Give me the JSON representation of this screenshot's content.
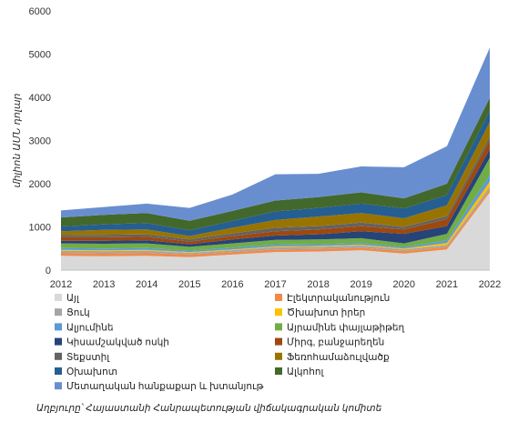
{
  "chart_data": {
    "type": "area",
    "stacked": true,
    "x": [
      "2012",
      "2013",
      "2014",
      "2015",
      "2016",
      "2017",
      "2018",
      "2019",
      "2020",
      "2021",
      "2022"
    ],
    "ylabel": "միլիոն ԱՄՆ դոլար",
    "ylim": [
      0,
      6000
    ],
    "yticks": [
      0,
      1000,
      2000,
      3000,
      4000,
      5000,
      6000
    ],
    "grid": false,
    "legend_position": "bottom",
    "source": "Աղբյուրը՝ Հայաստանի Հանրապետության վիճակագրական կոմիտե",
    "series": [
      {
        "name": "Այլ",
        "color": "#d9d9d9",
        "values": [
          330,
          320,
          330,
          300,
          360,
          420,
          430,
          460,
          380,
          480,
          1800
        ]
      },
      {
        "name": "Էլեկտրականություն",
        "color": "#f08a4b",
        "values": [
          70,
          70,
          70,
          60,
          60,
          60,
          60,
          60,
          60,
          60,
          70
        ]
      },
      {
        "name": "Ցուկ",
        "color": "#a5a5a5",
        "values": [
          50,
          50,
          50,
          40,
          40,
          50,
          50,
          50,
          40,
          40,
          60
        ]
      },
      {
        "name": "Ծխախոտ իրեր",
        "color": "#ffc000",
        "values": [
          20,
          20,
          20,
          20,
          20,
          20,
          20,
          20,
          20,
          50,
          120
        ]
      },
      {
        "name": "Ալյումինե",
        "color": "#5b9bd5",
        "values": [
          40,
          40,
          40,
          30,
          40,
          40,
          40,
          40,
          30,
          60,
          150
        ]
      },
      {
        "name": "Այրամինե փայլաթիթեղ",
        "color": "#70ad47",
        "values": [
          110,
          110,
          110,
          90,
          100,
          110,
          110,
          110,
          90,
          150,
          400
        ]
      },
      {
        "name": "Կիսամշակված ոսկի",
        "color": "#264478",
        "values": [
          60,
          70,
          70,
          60,
          90,
          100,
          120,
          160,
          220,
          180,
          200
        ]
      },
      {
        "name": "Միրգ, բանջարեղեն",
        "color": "#9e480e",
        "values": [
          80,
          80,
          80,
          60,
          80,
          100,
          110,
          120,
          100,
          160,
          210
        ]
      },
      {
        "name": "Տեքստիլ",
        "color": "#636363",
        "values": [
          50,
          60,
          60,
          50,
          60,
          80,
          80,
          80,
          60,
          70,
          90
        ]
      },
      {
        "name": "Ֆեռոհամաձուլվածք",
        "color": "#997300",
        "values": [
          90,
          110,
          110,
          80,
          130,
          180,
          220,
          220,
          200,
          250,
          330
        ]
      },
      {
        "name": "Օխախոտ",
        "color": "#255e91",
        "values": [
          110,
          130,
          150,
          130,
          160,
          200,
          200,
          220,
          230,
          240,
          260
        ]
      },
      {
        "name": "Ալկոհոլ",
        "color": "#43682b",
        "values": [
          210,
          220,
          230,
          220,
          230,
          250,
          250,
          260,
          230,
          260,
          300
        ]
      },
      {
        "name": "Մետաղական հանքաքար և խտանյութ",
        "color": "#698ed0",
        "values": [
          160,
          180,
          220,
          300,
          380,
          610,
          540,
          600,
          720,
          870,
          1160
        ]
      }
    ]
  }
}
